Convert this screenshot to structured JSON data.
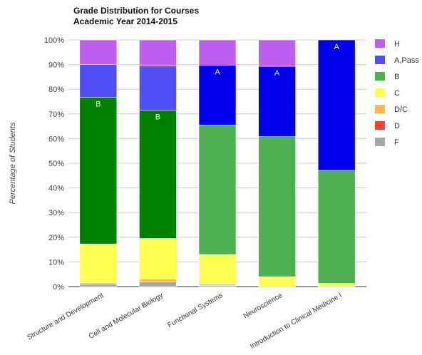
{
  "chart_data": {
    "type": "bar",
    "stacked": true,
    "title": [
      "Grade Distribution for Courses",
      "Academic Year 2014-2015"
    ],
    "ylabel": "Percentage of Students",
    "xlabel": "",
    "ylim": [
      0,
      100
    ],
    "yticks": [
      "0%",
      "10%",
      "20%",
      "30%",
      "40%",
      "50%",
      "60%",
      "70%",
      "80%",
      "90%",
      "100%"
    ],
    "grid": true,
    "legend_position": "right",
    "categories": [
      "Structure and Development",
      "Cell and Molecular Biology",
      "Functional Systems",
      "Neuroscience",
      "Introduction to Clinical Medicine I"
    ],
    "series": [
      {
        "name": "F",
        "color": "#a6a6a6",
        "values": [
          1,
          2,
          0.5,
          0,
          0
        ]
      },
      {
        "name": "D",
        "color": "#f44336",
        "values": [
          0,
          0,
          0,
          0,
          0
        ]
      },
      {
        "name": "D/C",
        "color": "#ffb74d",
        "values": [
          0.5,
          1,
          0.5,
          0,
          0
        ]
      },
      {
        "name": "C",
        "color": "#ffff52",
        "values": [
          15.8,
          16.5,
          12,
          4,
          1.3
        ]
      },
      {
        "name": "B",
        "color": "#4caf50",
        "values": [
          0,
          0,
          52.5,
          56.8,
          45.8
        ]
      },
      {
        "name": "B (dark)",
        "color": "#008000",
        "values": [
          59.5,
          52,
          0,
          0,
          0
        ]
      },
      {
        "name": "A,Pass",
        "color": "#0000ee",
        "values": [
          0,
          0,
          24.3,
          28.5,
          52.9
        ]
      },
      {
        "name": "A,Pass (light)",
        "color": "#4f4ff5",
        "values": [
          13.3,
          17.9,
          0,
          0,
          0
        ]
      },
      {
        "name": "H",
        "color": "#bf5ff2",
        "values": [
          9.9,
          10.6,
          10.2,
          10.7,
          0
        ]
      }
    ],
    "legend": [
      {
        "name": "H",
        "color": "#bf5ff2"
      },
      {
        "name": "A,Pass",
        "color": "#4f4ff5"
      },
      {
        "name": "B",
        "color": "#4caf50"
      },
      {
        "name": "C",
        "color": "#ffff52"
      },
      {
        "name": "D/C",
        "color": "#ffb74d"
      },
      {
        "name": "D",
        "color": "#f44336"
      },
      {
        "name": "F",
        "color": "#a6a6a6"
      }
    ],
    "annotations": [
      {
        "category": 0,
        "series": "B (dark)",
        "text": "B"
      },
      {
        "category": 1,
        "series": "B (dark)",
        "text": "B"
      },
      {
        "category": 2,
        "series": "A,Pass",
        "text": "A"
      },
      {
        "category": 3,
        "series": "A,Pass",
        "text": "A"
      },
      {
        "category": 4,
        "series": "A,Pass",
        "text": "A"
      }
    ]
  }
}
